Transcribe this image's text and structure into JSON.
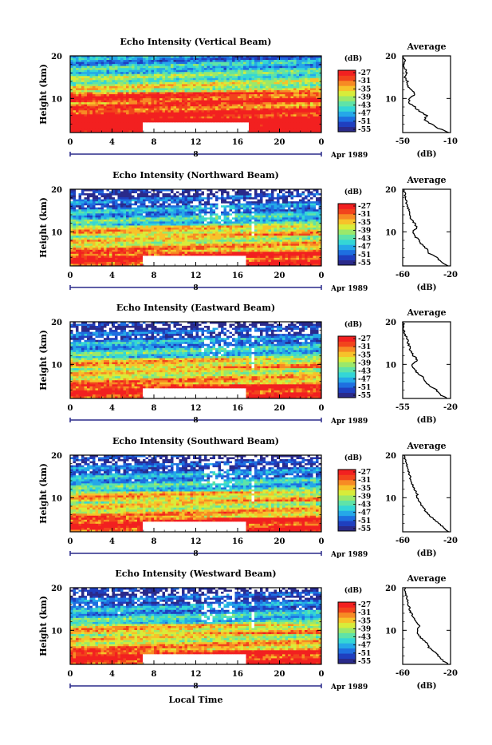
{
  "xlabel": "Local Time",
  "colorbar_unit": "(dB)",
  "colorbar_ticks": [
    "-27",
    "-31",
    "-35",
    "-39",
    "-43",
    "-47",
    "-51",
    "-55"
  ],
  "colormap": [
    "#2a2a8a",
    "#1f3fbf",
    "#1e6fe0",
    "#25a8e8",
    "#34d6d6",
    "#5fe3a8",
    "#9be86a",
    "#d8ec3a",
    "#f7c22a",
    "#f78a24",
    "#f2441c",
    "#f22020"
  ],
  "date_label": "Apr 1989",
  "date_marker": "8",
  "xticks": [
    "0",
    "4",
    "8",
    "12",
    "16",
    "20",
    "0"
  ],
  "chart_data": [
    {
      "type": "heatmap",
      "title": "Echo Intensity (Vertical Beam)",
      "ylabel": "Height (km)",
      "yticks": [
        "20",
        "10"
      ],
      "xlabel": "Local Time",
      "x_range_hours": [
        0,
        24
      ],
      "y_range_km": [
        2,
        20
      ],
      "avg_profile": {
        "title": "Average",
        "xlabel": "(dB)",
        "xticks": [
          "-50",
          "-10"
        ],
        "yticks": [
          "20",
          "10"
        ],
        "xlim": [
          -50,
          -10
        ],
        "height_km": [
          2,
          3,
          4,
          5,
          6,
          7,
          8,
          9,
          10,
          11,
          12,
          13,
          14,
          15,
          16,
          17,
          18,
          19,
          20
        ],
        "db": [
          -12,
          -20,
          -26,
          -32,
          -30,
          -36,
          -40,
          -45,
          -44,
          -40,
          -42,
          -46,
          -46,
          -48,
          -47,
          -48,
          -49,
          -48,
          -50
        ]
      }
    },
    {
      "type": "heatmap",
      "title": "Echo Intensity (Northward Beam)",
      "ylabel": "Height (km)",
      "yticks": [
        "20",
        "10"
      ],
      "xlabel": "Local Time",
      "x_range_hours": [
        0,
        24
      ],
      "y_range_km": [
        2,
        20
      ],
      "avg_profile": {
        "title": "Average",
        "xlabel": "(dB)",
        "xticks": [
          "-60",
          "-20"
        ],
        "yticks": [
          "20",
          "10"
        ],
        "xlim": [
          -60,
          -20
        ],
        "height_km": [
          2,
          3,
          4,
          5,
          6,
          7,
          8,
          9,
          10,
          11,
          12,
          13,
          14,
          15,
          16,
          17,
          18,
          19,
          20
        ],
        "db": [
          -22,
          -28,
          -32,
          -38,
          -40,
          -44,
          -46,
          -50,
          -52,
          -48,
          -50,
          -53,
          -54,
          -55,
          -56,
          -57,
          -58,
          -58,
          -59
        ]
      }
    },
    {
      "type": "heatmap",
      "title": "Echo Intensity (Eastward Beam)",
      "ylabel": "Height (km)",
      "yticks": [
        "20",
        "10"
      ],
      "xlabel": "Local Time",
      "x_range_hours": [
        0,
        24
      ],
      "y_range_km": [
        2,
        20
      ],
      "avg_profile": {
        "title": "Average",
        "xlabel": "(dB)",
        "xticks": [
          "-55",
          "-20"
        ],
        "yticks": [
          "20",
          "10"
        ],
        "xlim": [
          -55,
          -20
        ],
        "height_km": [
          2,
          3,
          4,
          5,
          6,
          7,
          8,
          9,
          10,
          11,
          12,
          13,
          14,
          15,
          16,
          17,
          18,
          19,
          20
        ],
        "db": [
          -22,
          -28,
          -30,
          -36,
          -38,
          -40,
          -44,
          -47,
          -48,
          -44,
          -47,
          -49,
          -50,
          -51,
          -52,
          -53,
          -54,
          -54,
          -55
        ]
      }
    },
    {
      "type": "heatmap",
      "title": "Echo Intensity (Southward Beam)",
      "ylabel": "Height (km)",
      "yticks": [
        "20",
        "10"
      ],
      "xlabel": "Local Time",
      "x_range_hours": [
        0,
        24
      ],
      "y_range_km": [
        2,
        20
      ],
      "avg_profile": {
        "title": "Average",
        "xlabel": "(dB)",
        "xticks": [
          "-60",
          "-20"
        ],
        "yticks": [
          "20",
          "10"
        ],
        "xlim": [
          -60,
          -20
        ],
        "height_km": [
          2,
          3,
          4,
          5,
          6,
          7,
          8,
          9,
          10,
          11,
          12,
          13,
          14,
          15,
          16,
          17,
          18,
          19,
          20
        ],
        "db": [
          -22,
          -26,
          -30,
          -34,
          -38,
          -41,
          -44,
          -46,
          -48,
          -48,
          -50,
          -52,
          -53,
          -54,
          -55,
          -56,
          -57,
          -58,
          -59
        ]
      }
    },
    {
      "type": "heatmap",
      "title": "Echo Intensity (Westward Beam)",
      "ylabel": "Height (km)",
      "yticks": [
        "20",
        "10"
      ],
      "xlabel": "Local Time",
      "x_range_hours": [
        0,
        24
      ],
      "y_range_km": [
        2,
        20
      ],
      "avg_profile": {
        "title": "Average",
        "xlabel": "(dB)",
        "xticks": [
          "-60",
          "-20"
        ],
        "yticks": [
          "20",
          "10"
        ],
        "xlim": [
          -60,
          -20
        ],
        "height_km": [
          2,
          3,
          4,
          5,
          6,
          7,
          8,
          9,
          10,
          11,
          12,
          13,
          14,
          15,
          16,
          17,
          18,
          19,
          20
        ],
        "db": [
          -22,
          -27,
          -30,
          -34,
          -38,
          -40,
          -44,
          -47,
          -48,
          -46,
          -49,
          -51,
          -53,
          -54,
          -55,
          -56,
          -57,
          -58,
          -58
        ]
      }
    }
  ]
}
